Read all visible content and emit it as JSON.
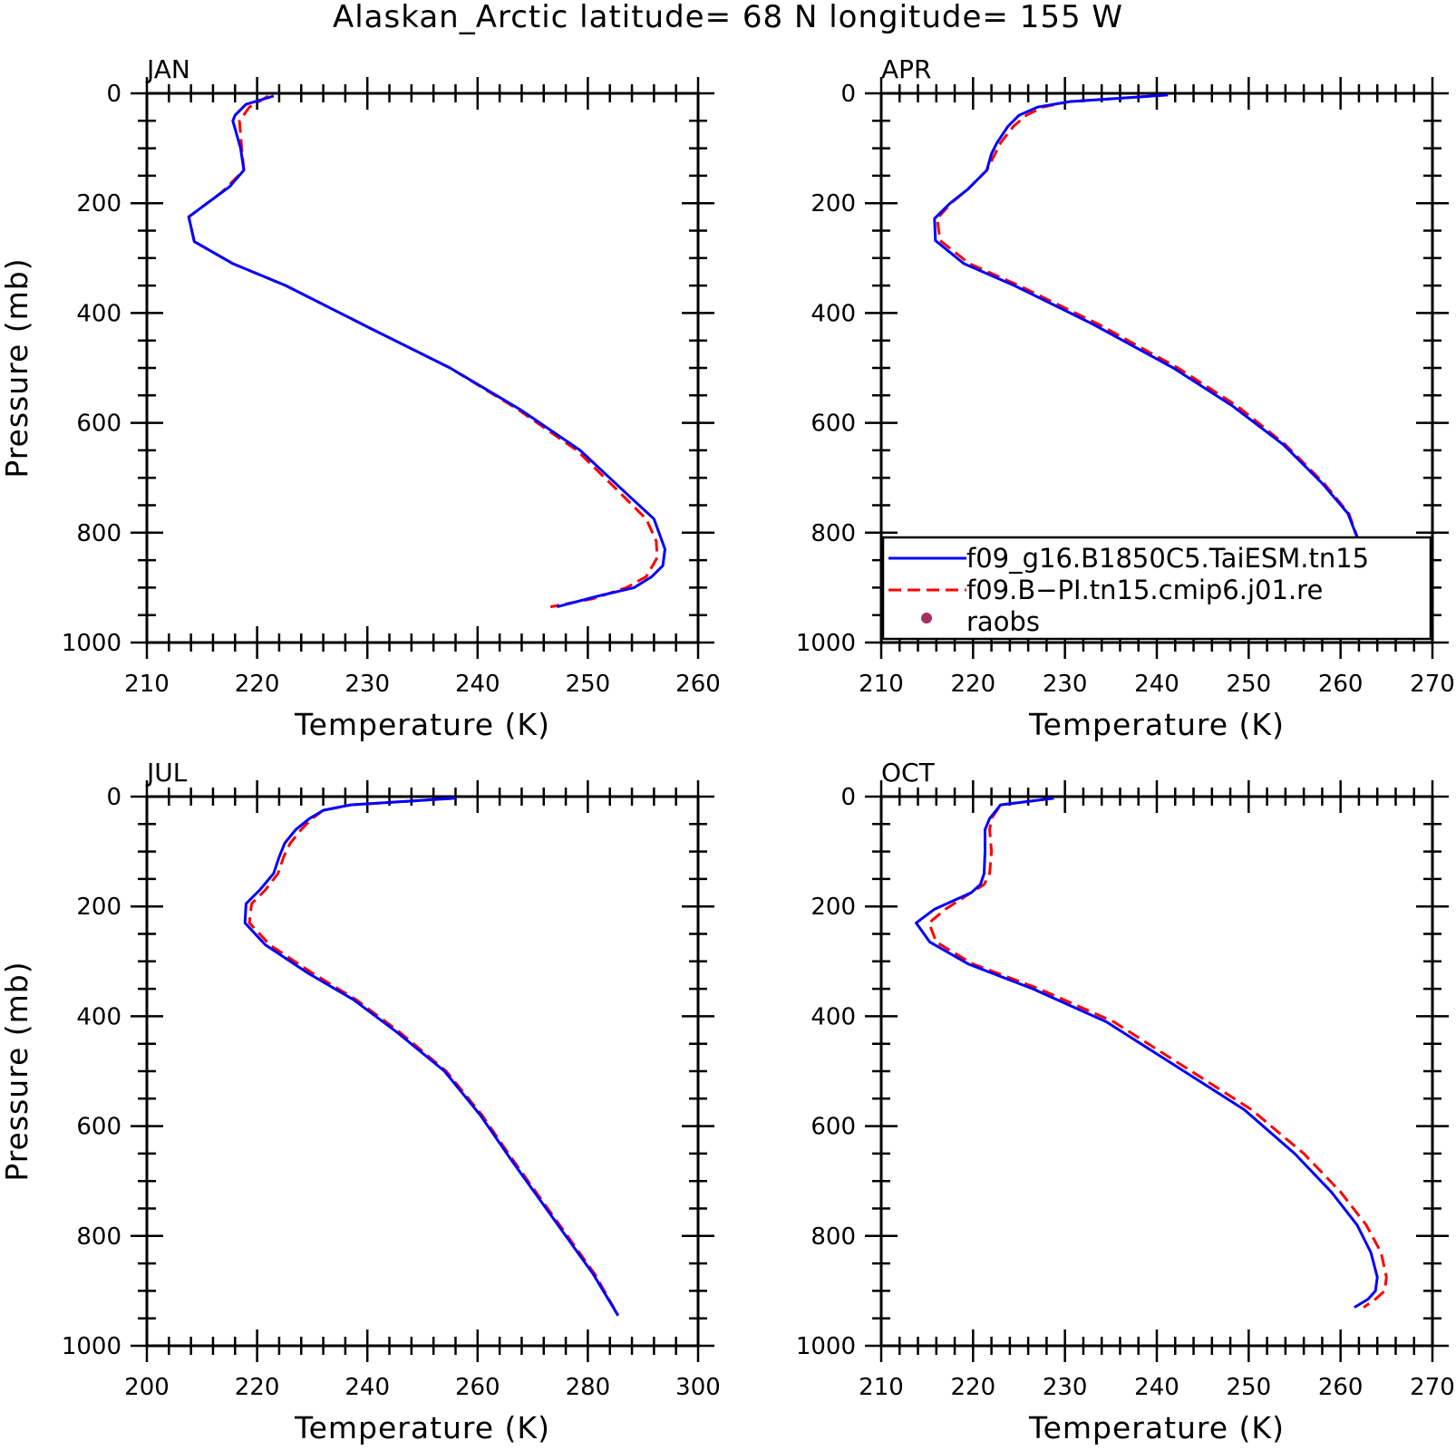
{
  "title": "Alaskan_Arctic  latitude= 68 N longitude= 155 W",
  "legend": {
    "entries": [
      {
        "label": "f09_g16.B1850C5.TaiESM.tn15",
        "color": "#0000ff",
        "style": "solid"
      },
      {
        "label": "f09.B−PI.tn15.cmip6.j01.re",
        "color": "#ff0000",
        "style": "dashed"
      },
      {
        "label": "raobs",
        "color": "#a3305f",
        "style": "dot"
      }
    ],
    "placement": "APR panel, lower right"
  },
  "chart_data": [
    {
      "type": "line",
      "panel": "JAN",
      "xlabel": "Temperature (K)",
      "ylabel": "Pressure (mb)",
      "xlim": [
        210,
        260
      ],
      "ylim": [
        0,
        1000
      ],
      "y_inverted": true,
      "xticks": [
        "210",
        "220",
        "230",
        "240",
        "250",
        "260"
      ],
      "yticks": [
        "0",
        "200",
        "400",
        "600",
        "800",
        "1000"
      ],
      "series": [
        {
          "name": "f09_g16.B1850C5.TaiESM.tn15",
          "color": "#0000ff",
          "x": [
            221.5,
            219.0,
            218.0,
            217.8,
            218.5,
            218.8,
            217.5,
            213.8,
            214.3,
            217.8,
            222.6,
            230.0,
            237.5,
            243.8,
            249.3,
            253.3,
            256.0,
            257.0,
            256.8,
            255.8,
            254.2,
            251.0,
            247.2
          ],
          "y": [
            5,
            20,
            40,
            50,
            100,
            140,
            170,
            225,
            270,
            310,
            350,
            425,
            500,
            575,
            650,
            725,
            775,
            830,
            860,
            880,
            900,
            915,
            935
          ]
        },
        {
          "name": "f09.B−PI.tn15.cmip6.j01.re",
          "color": "#ff0000",
          "x": [
            221.0,
            219.3,
            218.4,
            218.6,
            218.8,
            216.8,
            213.8,
            214.3,
            217.8,
            222.6,
            230.0,
            237.5,
            243.6,
            249.0,
            252.8,
            255.3,
            256.2,
            256.3,
            255.3,
            253.5,
            250.5,
            246.6
          ],
          "y": [
            5,
            25,
            50,
            100,
            140,
            180,
            225,
            270,
            310,
            350,
            425,
            500,
            575,
            650,
            725,
            775,
            815,
            845,
            880,
            900,
            920,
            935
          ]
        }
      ]
    },
    {
      "type": "line",
      "panel": "APR",
      "xlabel": "Temperature (K)",
      "ylabel": "",
      "xlim": [
        210,
        270
      ],
      "ylim": [
        0,
        1000
      ],
      "y_inverted": true,
      "xticks": [
        "210",
        "220",
        "230",
        "240",
        "250",
        "260",
        "270"
      ],
      "yticks": [
        "0",
        "200",
        "400",
        "600",
        "800",
        "1000"
      ],
      "series": [
        {
          "name": "f09_g16.B1850C5.TaiESM.tn15",
          "color": "#0000ff",
          "x": [
            241.2,
            230.5,
            227.0,
            225.0,
            223.8,
            222.6,
            222.0,
            221.5,
            219.4,
            217.5,
            215.8,
            215.9,
            219.0,
            224.5,
            233.0,
            241.8,
            248.3,
            253.8,
            258.0,
            260.8,
            262.3,
            262.6,
            262.0,
            259.0
          ],
          "y": [
            3,
            15,
            25,
            40,
            60,
            90,
            110,
            140,
            175,
            200,
            228,
            268,
            310,
            350,
            420,
            500,
            570,
            640,
            710,
            765,
            830,
            880,
            910,
            945
          ]
        },
        {
          "name": "f09.B−PI.tn15.cmip6.j01.re",
          "color": "#ff0000",
          "x": [
            241.2,
            230.5,
            227.6,
            225.8,
            224.4,
            223.0,
            221.5,
            219.4,
            217.6,
            216.1,
            216.4,
            219.6,
            225.0,
            233.6,
            242.3,
            248.8,
            254.0,
            258.2,
            260.9,
            262.3,
            262.7,
            261.8,
            259.0
          ],
          "y": [
            3,
            15,
            25,
            40,
            60,
            90,
            140,
            175,
            200,
            228,
            268,
            310,
            350,
            420,
            500,
            570,
            640,
            710,
            765,
            830,
            880,
            915,
            945
          ]
        }
      ]
    },
    {
      "type": "line",
      "panel": "JUL",
      "xlabel": "Temperature (K)",
      "ylabel": "Pressure (mb)",
      "xlim": [
        200,
        300
      ],
      "ylim": [
        0,
        1000
      ],
      "y_inverted": true,
      "xticks": [
        "200",
        "220",
        "240",
        "260",
        "280",
        "300"
      ],
      "yticks": [
        "0",
        "200",
        "400",
        "600",
        "800",
        "1000"
      ],
      "series": [
        {
          "name": "f09_g16.B1850C5.TaiESM.tn15",
          "color": "#0000ff",
          "x": [
            256.0,
            237.0,
            232.0,
            229.5,
            227.0,
            225.0,
            224.0,
            223.0,
            220.5,
            218.0,
            217.8,
            221.5,
            229.0,
            237.5,
            245.5,
            254.0,
            260.5,
            266.0,
            271.0,
            276.0,
            281.0,
            285.5
          ],
          "y": [
            3,
            15,
            25,
            40,
            60,
            85,
            110,
            140,
            170,
            195,
            230,
            270,
            320,
            370,
            430,
            500,
            580,
            660,
            730,
            800,
            870,
            945
          ]
        },
        {
          "name": "f09.B−PI.tn15.cmip6.j01.re",
          "color": "#ff0000",
          "x": [
            256.0,
            237.0,
            232.0,
            230.0,
            228.0,
            226.0,
            224.8,
            223.8,
            221.5,
            219.0,
            218.6,
            222.3,
            229.8,
            238.0,
            246.0,
            254.3,
            260.8,
            266.3,
            271.3,
            276.3,
            281.3,
            285.5
          ],
          "y": [
            3,
            15,
            25,
            40,
            60,
            85,
            110,
            140,
            170,
            195,
            230,
            270,
            320,
            370,
            430,
            500,
            580,
            660,
            730,
            800,
            870,
            945
          ]
        }
      ]
    },
    {
      "type": "line",
      "panel": "OCT",
      "xlabel": "Temperature (K)",
      "ylabel": "",
      "xlim": [
        210,
        270
      ],
      "ylim": [
        0,
        1000
      ],
      "y_inverted": true,
      "xticks": [
        "210",
        "220",
        "230",
        "240",
        "250",
        "260",
        "270"
      ],
      "yticks": [
        "0",
        "200",
        "400",
        "600",
        "800",
        "1000"
      ],
      "series": [
        {
          "name": "f09_g16.B1850C5.TaiESM.tn15",
          "color": "#0000ff",
          "x": [
            228.8,
            223.0,
            221.8,
            221.3,
            221.3,
            221.2,
            220.8,
            219.8,
            215.8,
            213.8,
            215.3,
            219.5,
            226.5,
            234.5,
            242.0,
            249.5,
            255.0,
            259.0,
            261.8,
            263.3,
            264.0,
            263.8,
            263.0,
            261.5
          ],
          "y": [
            3,
            15,
            40,
            60,
            100,
            140,
            160,
            175,
            205,
            230,
            265,
            305,
            350,
            410,
            490,
            570,
            650,
            720,
            780,
            830,
            875,
            900,
            915,
            930
          ]
        },
        {
          "name": "f09.B−PI.tn15.cmip6.j01.re",
          "color": "#ff0000",
          "x": [
            228.8,
            223.0,
            222.0,
            221.8,
            222.0,
            221.8,
            221.2,
            219.8,
            217.0,
            215.2,
            216.0,
            220.0,
            227.2,
            235.3,
            242.8,
            250.3,
            256.0,
            260.0,
            262.8,
            264.4,
            265.0,
            264.8,
            263.8,
            262.5
          ],
          "y": [
            3,
            15,
            40,
            60,
            100,
            140,
            160,
            175,
            205,
            230,
            265,
            305,
            350,
            410,
            490,
            570,
            650,
            720,
            780,
            830,
            875,
            900,
            915,
            930
          ]
        }
      ]
    }
  ]
}
